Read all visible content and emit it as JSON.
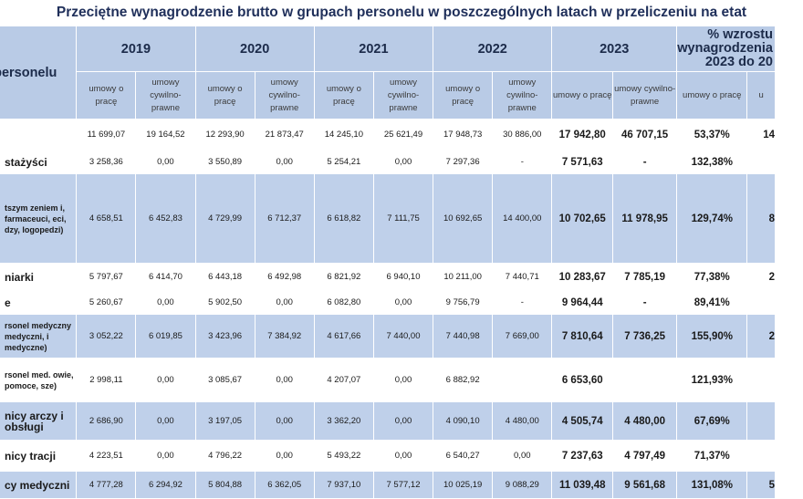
{
  "title": "Przeciętne wynagrodzenie brutto w grupach personelu w poszczególnych latach w przeliczeniu na etat",
  "header": {
    "category_label": "a personelu",
    "years": [
      "2019",
      "2020",
      "2021",
      "2022",
      "2023"
    ],
    "pct_label": "% wzrostu wynagrodzenia 2023 do 20",
    "sub_uop": "umowy o pracę",
    "sub_cp": "umowy cywilno-prawne",
    "sub_pct_uop": "umowy o pracę",
    "sub_pct_cp": "u"
  },
  "rows": [
    {
      "cat": "",
      "size": "l",
      "tone": "light",
      "vals": [
        "11 699,07",
        "19 164,52",
        "12 293,90",
        "21 873,47",
        "14 245,10",
        "25 621,49",
        "17 948,73",
        "30 886,00",
        "17 942,80",
        "46 707,15",
        "53,37%",
        "14"
      ]
    },
    {
      "cat": "stażyści",
      "size": "l",
      "tone": "light",
      "vals": [
        "3 258,36",
        "0,00",
        "3 550,89",
        "0,00",
        "5 254,21",
        "0,00",
        "7 297,36",
        "-",
        "7 571,63",
        "-",
        "132,38%",
        ""
      ]
    },
    {
      "cat": "tszym zeniem i, farmaceuci, eci, dzy, logopedzi)",
      "size": "s",
      "tone": "dark",
      "vals": [
        "4 658,51",
        "6 452,83",
        "4 729,99",
        "6 712,37",
        "6 618,82",
        "7 111,75",
        "10 692,65",
        "14 400,00",
        "10 702,65",
        "11 978,95",
        "129,74%",
        "8"
      ]
    },
    {
      "cat": "niarki",
      "size": "l",
      "tone": "light",
      "vals": [
        "5 797,67",
        "6 414,70",
        "6 443,18",
        "6 492,98",
        "6 821,92",
        "6 940,10",
        "10 211,00",
        "7 440,71",
        "10 283,67",
        "7 785,19",
        "77,38%",
        "2"
      ]
    },
    {
      "cat": "e",
      "size": "l",
      "tone": "light",
      "vals": [
        "5 260,67",
        "0,00",
        "5 902,50",
        "0,00",
        "6 082,80",
        "0,00",
        "9 756,79",
        "-",
        "9 964,44",
        "-",
        "89,41%",
        ""
      ]
    },
    {
      "cat": "rsonel medyczny medyczni, i medyczne)",
      "size": "s",
      "tone": "dark",
      "vals": [
        "3 052,22",
        "6 019,85",
        "3 423,96",
        "7 384,92",
        "4 617,66",
        "7 440,00",
        "7 440,98",
        "7 669,00",
        "7 810,64",
        "7 736,25",
        "155,90%",
        "2"
      ]
    },
    {
      "cat": "rsonel med. owie, pomoce, sze)",
      "size": "s",
      "tone": "light",
      "vals": [
        "2 998,11",
        "0,00",
        "3 085,67",
        "0,00",
        "4 207,07",
        "0,00",
        "6 882,92",
        "",
        "6 653,60",
        "",
        "121,93%",
        ""
      ]
    },
    {
      "cat": "nicy arczy i obsługi",
      "size": "m",
      "tone": "dark",
      "vals": [
        "2 686,90",
        "0,00",
        "3 197,05",
        "0,00",
        "3 362,20",
        "0,00",
        "4 090,10",
        "4 480,00",
        "4 505,74",
        "4 480,00",
        "67,69%",
        ""
      ]
    },
    {
      "cat": "nicy tracji",
      "size": "m",
      "tone": "light",
      "vals": [
        "4 223,51",
        "0,00",
        "4 796,22",
        "0,00",
        "5 493,22",
        "0,00",
        "6 540,27",
        "0,00",
        "7 237,63",
        "4 797,49",
        "71,37%",
        ""
      ]
    },
    {
      "cat": "cy medyczni",
      "size": "m",
      "tone": "dark",
      "vals": [
        "4 777,28",
        "6 294,92",
        "5 804,88",
        "6 362,05",
        "7 937,10",
        "7 577,12",
        "10 025,19",
        "9 088,29",
        "11 039,48",
        "9 561,68",
        "131,08%",
        "5"
      ]
    }
  ],
  "colors": {
    "header_bg": "#b9cbe6",
    "row_dark": "#bfd0ea",
    "title": "#1f2f5a"
  }
}
